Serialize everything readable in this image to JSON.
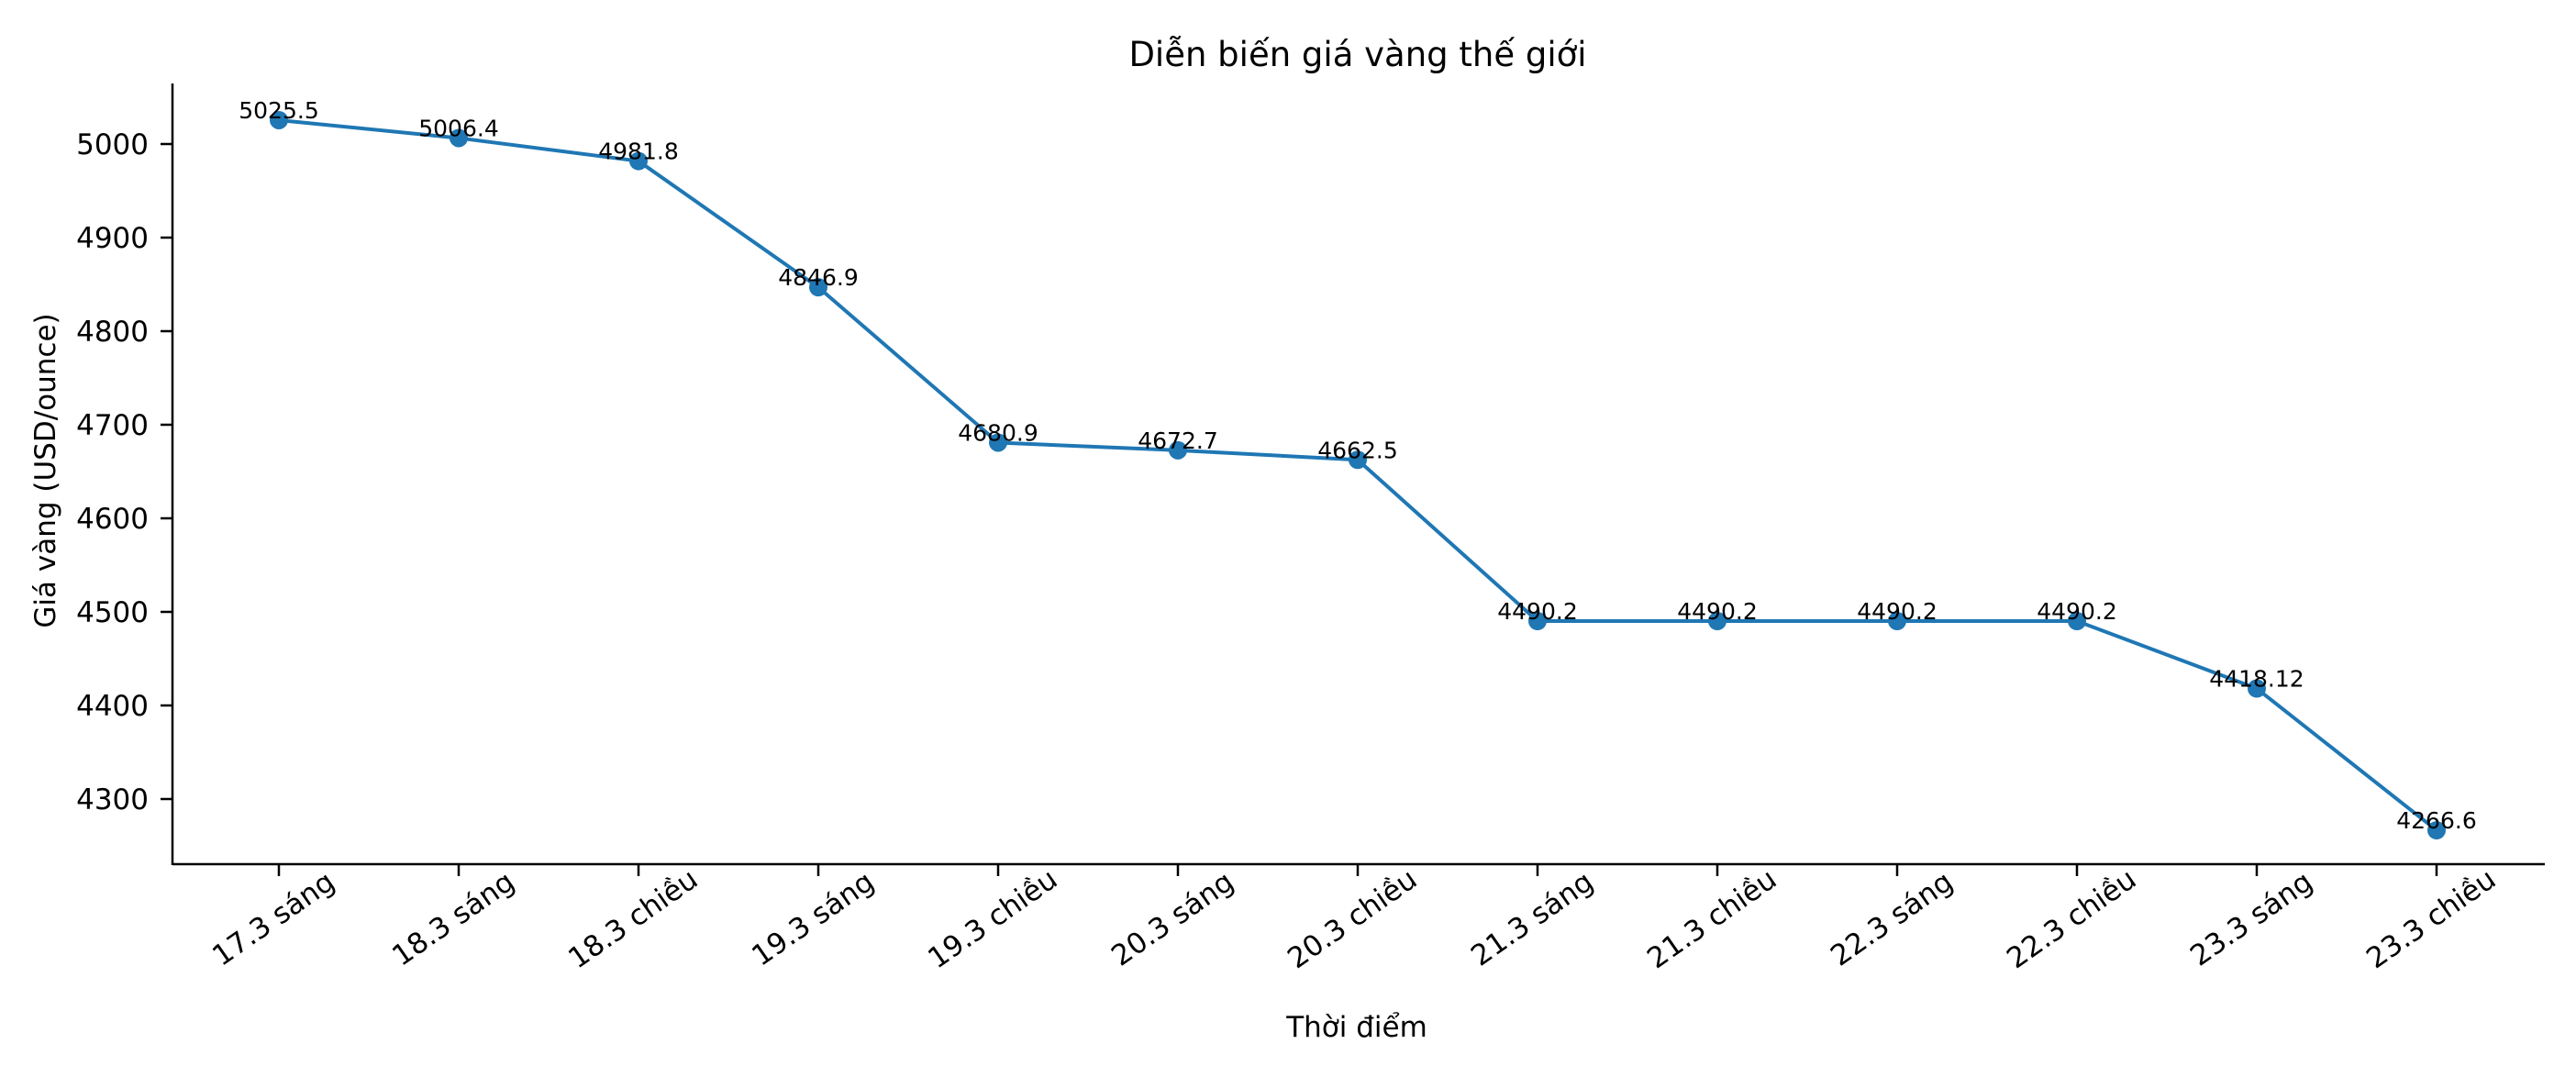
{
  "chart_data": {
    "type": "line",
    "title": "Diễn biến giá vàng thế giới",
    "xlabel": "Thời điểm",
    "ylabel": "Giá vàng (USD/ounce)",
    "categories": [
      "17.3 sáng",
      "18.3 sáng",
      "18.3 chiều",
      "19.3 sáng",
      "19.3 chiều",
      "20.3 sáng",
      "20.3 chiều",
      "21.3 sáng",
      "21.3 chiều",
      "22.3 sáng",
      "22.3 chiều",
      "23.3 sáng",
      "23.3 chiều"
    ],
    "series": [
      {
        "name": "Giá vàng",
        "color": "#1f77b4",
        "marker": "circle",
        "values": [
          5025.5,
          5006.4,
          4981.8,
          4846.9,
          4680.9,
          4672.7,
          4662.5,
          4490.2,
          4490.2,
          4490.2,
          4490.2,
          4418.12,
          4266.6
        ],
        "data_labels": [
          "5025.5",
          "5006.4",
          "4981.8",
          "4846.9",
          "4680.9",
          "4672.7",
          "4662.5",
          "4490.2",
          "4490.2",
          "4490.2",
          "4490.2",
          "4418.12",
          "4266.6"
        ]
      }
    ],
    "yticks": [
      4300,
      4400,
      4500,
      4600,
      4700,
      4800,
      4900,
      5000
    ],
    "ylim": [
      4227.5,
      5064.7
    ],
    "grid": false,
    "legend": null,
    "xtick_rotation": 35,
    "spines": {
      "top": false,
      "right": false
    }
  }
}
